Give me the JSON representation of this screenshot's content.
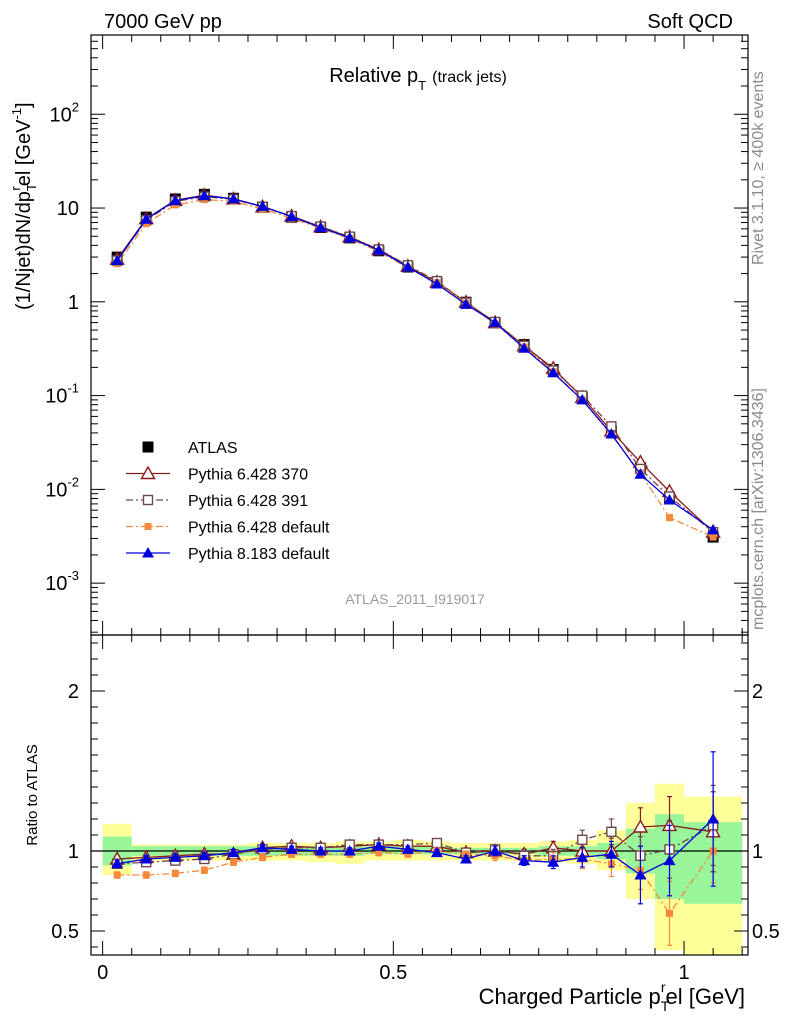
{
  "header": {
    "left": "7000 GeV pp",
    "right": "Soft QCD"
  },
  "side_notes": {
    "rivet": "Rivet 3.1.10, ≥ 400k events",
    "site": "mcplots.cern.ch [arXiv:1306.3436]"
  },
  "reference_label": "ATLAS_2011_I919017",
  "colors": {
    "atlas": "#000000",
    "p370": "#8b1a1a",
    "p391": "#6e4a4a",
    "pdef": "#f58a3a",
    "p8": "#0000dd",
    "band_inner": "#99f599",
    "band_outer": "#ffff99"
  },
  "chart_data": [
    {
      "type": "line",
      "name": "main",
      "title": "Relative pT (track jets)",
      "title_main": "Relative p",
      "title_sub": "T",
      "title_suffix": "(track jets)",
      "ylabel": "(1/Njet)dN/dpTrel [GeV⁻¹]",
      "ylabel_parts": {
        "a": "(1/Njet)dN/dp",
        "sub": "T",
        "sup": "r",
        "b": "el [GeV",
        "sup2": "-1",
        "c": "]"
      },
      "yscale": "log",
      "xlim": [
        -0.02,
        1.11
      ],
      "ylim": [
        0.00028,
        700
      ],
      "yticks": [
        {
          "value": 0.001,
          "base": "10",
          "exp": "-3"
        },
        {
          "value": 0.01,
          "base": "10",
          "exp": "-2"
        },
        {
          "value": 0.1,
          "base": "10",
          "exp": "-1"
        },
        {
          "value": 1,
          "base": "1",
          "exp": ""
        },
        {
          "value": 10,
          "base": "10",
          "exp": ""
        },
        {
          "value": 100,
          "base": "10",
          "exp": "2"
        }
      ],
      "x": [
        0.025,
        0.075,
        0.125,
        0.175,
        0.225,
        0.275,
        0.325,
        0.375,
        0.425,
        0.475,
        0.525,
        0.575,
        0.625,
        0.675,
        0.725,
        0.775,
        0.825,
        0.875,
        0.925,
        0.975,
        1.05
      ],
      "series": [
        {
          "name": "ATLAS",
          "key": "atlas",
          "marker": "square-filled",
          "dash": "none",
          "values": [
            3.0,
            8.0,
            12.5,
            14.0,
            12.7,
            10.2,
            8.0,
            6.2,
            4.8,
            3.5,
            2.35,
            1.6,
            0.99,
            0.6,
            0.35,
            0.19,
            0.095,
            0.042,
            0.017,
            0.0082,
            0.0031
          ]
        },
        {
          "name": "Pythia 6.428 370",
          "key": "p370",
          "marker": "triangle-open",
          "dash": "solid",
          "values": [
            2.85,
            7.7,
            12.1,
            13.7,
            12.5,
            10.3,
            8.2,
            6.3,
            4.9,
            3.6,
            2.4,
            1.62,
            0.99,
            0.6,
            0.34,
            0.195,
            0.096,
            0.042,
            0.0195,
            0.0095,
            0.0035
          ]
        },
        {
          "name": "Pythia 6.428 391",
          "key": "p391",
          "marker": "square-open",
          "dash": "dashdot",
          "values": [
            2.75,
            7.4,
            11.8,
            13.2,
            12.4,
            10.3,
            8.2,
            6.35,
            4.95,
            3.62,
            2.45,
            1.66,
            0.98,
            0.61,
            0.34,
            0.185,
            0.1,
            0.047,
            0.0165,
            0.0084,
            0.0035
          ]
        },
        {
          "name": "Pythia 6.428 default",
          "key": "pdef",
          "marker": "square-filled-small",
          "dash": "dashdot",
          "values": [
            2.55,
            6.8,
            10.8,
            12.3,
            11.8,
            9.8,
            7.8,
            6.1,
            4.7,
            3.45,
            2.3,
            1.6,
            0.97,
            0.58,
            0.33,
            0.18,
            0.09,
            0.038,
            0.015,
            0.005,
            0.0031
          ]
        },
        {
          "name": "Pythia 8.183 default",
          "key": "p8",
          "marker": "triangle-filled",
          "dash": "solid",
          "values": [
            2.75,
            7.6,
            12.0,
            13.5,
            12.5,
            10.4,
            8.1,
            6.2,
            4.8,
            3.55,
            2.35,
            1.55,
            0.94,
            0.6,
            0.32,
            0.175,
            0.09,
            0.039,
            0.0145,
            0.0077,
            0.0037
          ]
        }
      ],
      "legend_position": "lower-left"
    },
    {
      "type": "line",
      "name": "ratio",
      "ylabel": "Ratio to ATLAS",
      "xlabel": "Charged Particle pTrel [GeV]",
      "xlabel_parts": {
        "a": "Charged Particle p",
        "sub": "T",
        "sup": "r",
        "b": "el [GeV]"
      },
      "xlim": [
        -0.02,
        1.11
      ],
      "ylim": [
        0.35,
        2.35
      ],
      "xticks": [
        {
          "value": 0,
          "label": "0"
        },
        {
          "value": 0.5,
          "label": "0.5"
        },
        {
          "value": 1,
          "label": "1"
        }
      ],
      "yticks": [
        {
          "value": 0.5,
          "label": "0.5"
        },
        {
          "value": 1,
          "label": "1"
        },
        {
          "value": 2,
          "label": "2"
        }
      ],
      "bins": [
        [
          0,
          0.05
        ],
        [
          0.05,
          0.1
        ],
        [
          0.1,
          0.15
        ],
        [
          0.15,
          0.2
        ],
        [
          0.2,
          0.25
        ],
        [
          0.25,
          0.3
        ],
        [
          0.3,
          0.35
        ],
        [
          0.35,
          0.4
        ],
        [
          0.4,
          0.45
        ],
        [
          0.45,
          0.5
        ],
        [
          0.5,
          0.55
        ],
        [
          0.55,
          0.6
        ],
        [
          0.6,
          0.65
        ],
        [
          0.65,
          0.7
        ],
        [
          0.7,
          0.75
        ],
        [
          0.75,
          0.8
        ],
        [
          0.8,
          0.85
        ],
        [
          0.85,
          0.9
        ],
        [
          0.9,
          0.95
        ],
        [
          0.95,
          1.0
        ],
        [
          1.0,
          1.1
        ]
      ],
      "band_inner": [
        [
          0.91,
          1.09
        ],
        [
          0.97,
          1.03
        ],
        [
          0.97,
          1.03
        ],
        [
          0.97,
          1.03
        ],
        [
          0.97,
          1.03
        ],
        [
          0.97,
          1.03
        ],
        [
          0.97,
          1.03
        ],
        [
          0.97,
          1.03
        ],
        [
          0.97,
          1.03
        ],
        [
          0.98,
          1.03
        ],
        [
          0.98,
          1.03
        ],
        [
          0.98,
          1.03
        ],
        [
          0.98,
          1.02
        ],
        [
          0.98,
          1.02
        ],
        [
          0.98,
          1.02
        ],
        [
          0.97,
          1.03
        ],
        [
          0.97,
          1.03
        ],
        [
          0.95,
          1.05
        ],
        [
          0.86,
          1.14
        ],
        [
          0.7,
          1.23
        ],
        [
          0.67,
          1.18
        ]
      ],
      "band_outer": [
        [
          0.85,
          1.17
        ],
        [
          0.94,
          1.04
        ],
        [
          0.94,
          1.04
        ],
        [
          0.94,
          1.04
        ],
        [
          0.94,
          1.04
        ],
        [
          0.94,
          1.05
        ],
        [
          0.94,
          1.05
        ],
        [
          0.93,
          1.05
        ],
        [
          0.92,
          1.06
        ],
        [
          0.94,
          1.06
        ],
        [
          0.94,
          1.07
        ],
        [
          0.94,
          1.06
        ],
        [
          0.94,
          1.05
        ],
        [
          0.94,
          1.05
        ],
        [
          0.94,
          1.05
        ],
        [
          0.93,
          1.06
        ],
        [
          0.92,
          1.07
        ],
        [
          0.88,
          1.13
        ],
        [
          0.7,
          1.3
        ],
        [
          0.38,
          1.42
        ],
        [
          0.35,
          1.34
        ]
      ],
      "series": [
        {
          "name": "Pythia 6.428 370",
          "key": "p370",
          "marker": "triangle-open",
          "dash": "solid",
          "values": [
            0.95,
            0.96,
            0.97,
            0.98,
            0.98,
            1.02,
            1.03,
            1.02,
            1.03,
            1.04,
            1.03,
            1.03,
            0.99,
            1.0,
            0.98,
            1.02,
            1.0,
            1.0,
            1.15,
            1.16,
            1.12
          ],
          "err": [
            0.02,
            0.02,
            0.02,
            0.02,
            0.02,
            0.02,
            0.02,
            0.02,
            0.02,
            0.02,
            0.02,
            0.02,
            0.02,
            0.03,
            0.03,
            0.04,
            0.06,
            0.08,
            0.12,
            0.18,
            0.25
          ]
        },
        {
          "name": "Pythia 6.428 391",
          "key": "p391",
          "marker": "square-open",
          "dash": "dashdot",
          "values": [
            0.92,
            0.93,
            0.94,
            0.95,
            0.98,
            1.01,
            1.02,
            1.02,
            1.04,
            1.04,
            1.04,
            1.05,
            0.99,
            1.01,
            0.97,
            0.97,
            1.07,
            1.12,
            0.97,
            1.01,
            1.16
          ],
          "err": [
            0.02,
            0.02,
            0.02,
            0.02,
            0.02,
            0.02,
            0.02,
            0.02,
            0.02,
            0.02,
            0.02,
            0.02,
            0.02,
            0.03,
            0.03,
            0.04,
            0.06,
            0.08,
            0.12,
            0.18,
            0.25
          ]
        },
        {
          "name": "Pythia 6.428 default",
          "key": "pdef",
          "marker": "square-filled-small",
          "dash": "dashdot",
          "values": [
            0.85,
            0.85,
            0.86,
            0.88,
            0.93,
            0.96,
            0.98,
            0.98,
            0.98,
            0.99,
            0.98,
            1.0,
            0.98,
            0.97,
            0.94,
            0.95,
            0.95,
            0.92,
            0.88,
            0.61,
            1.0
          ],
          "err": [
            0.02,
            0.02,
            0.02,
            0.02,
            0.02,
            0.02,
            0.02,
            0.02,
            0.02,
            0.02,
            0.02,
            0.02,
            0.02,
            0.03,
            0.03,
            0.04,
            0.06,
            0.08,
            0.12,
            0.2,
            0.2
          ]
        },
        {
          "name": "Pythia 8.183 default",
          "key": "p8",
          "marker": "triangle-filled",
          "dash": "solid",
          "values": [
            0.92,
            0.95,
            0.96,
            0.97,
            0.99,
            1.02,
            1.01,
            1.0,
            1.0,
            1.03,
            1.01,
            0.99,
            0.95,
            1.0,
            0.94,
            0.93,
            0.96,
            0.98,
            0.85,
            0.94,
            1.2
          ],
          "err": [
            0.02,
            0.02,
            0.02,
            0.02,
            0.02,
            0.02,
            0.02,
            0.02,
            0.02,
            0.02,
            0.02,
            0.02,
            0.02,
            0.03,
            0.03,
            0.04,
            0.06,
            0.08,
            0.18,
            0.22,
            0.42
          ]
        }
      ]
    }
  ]
}
